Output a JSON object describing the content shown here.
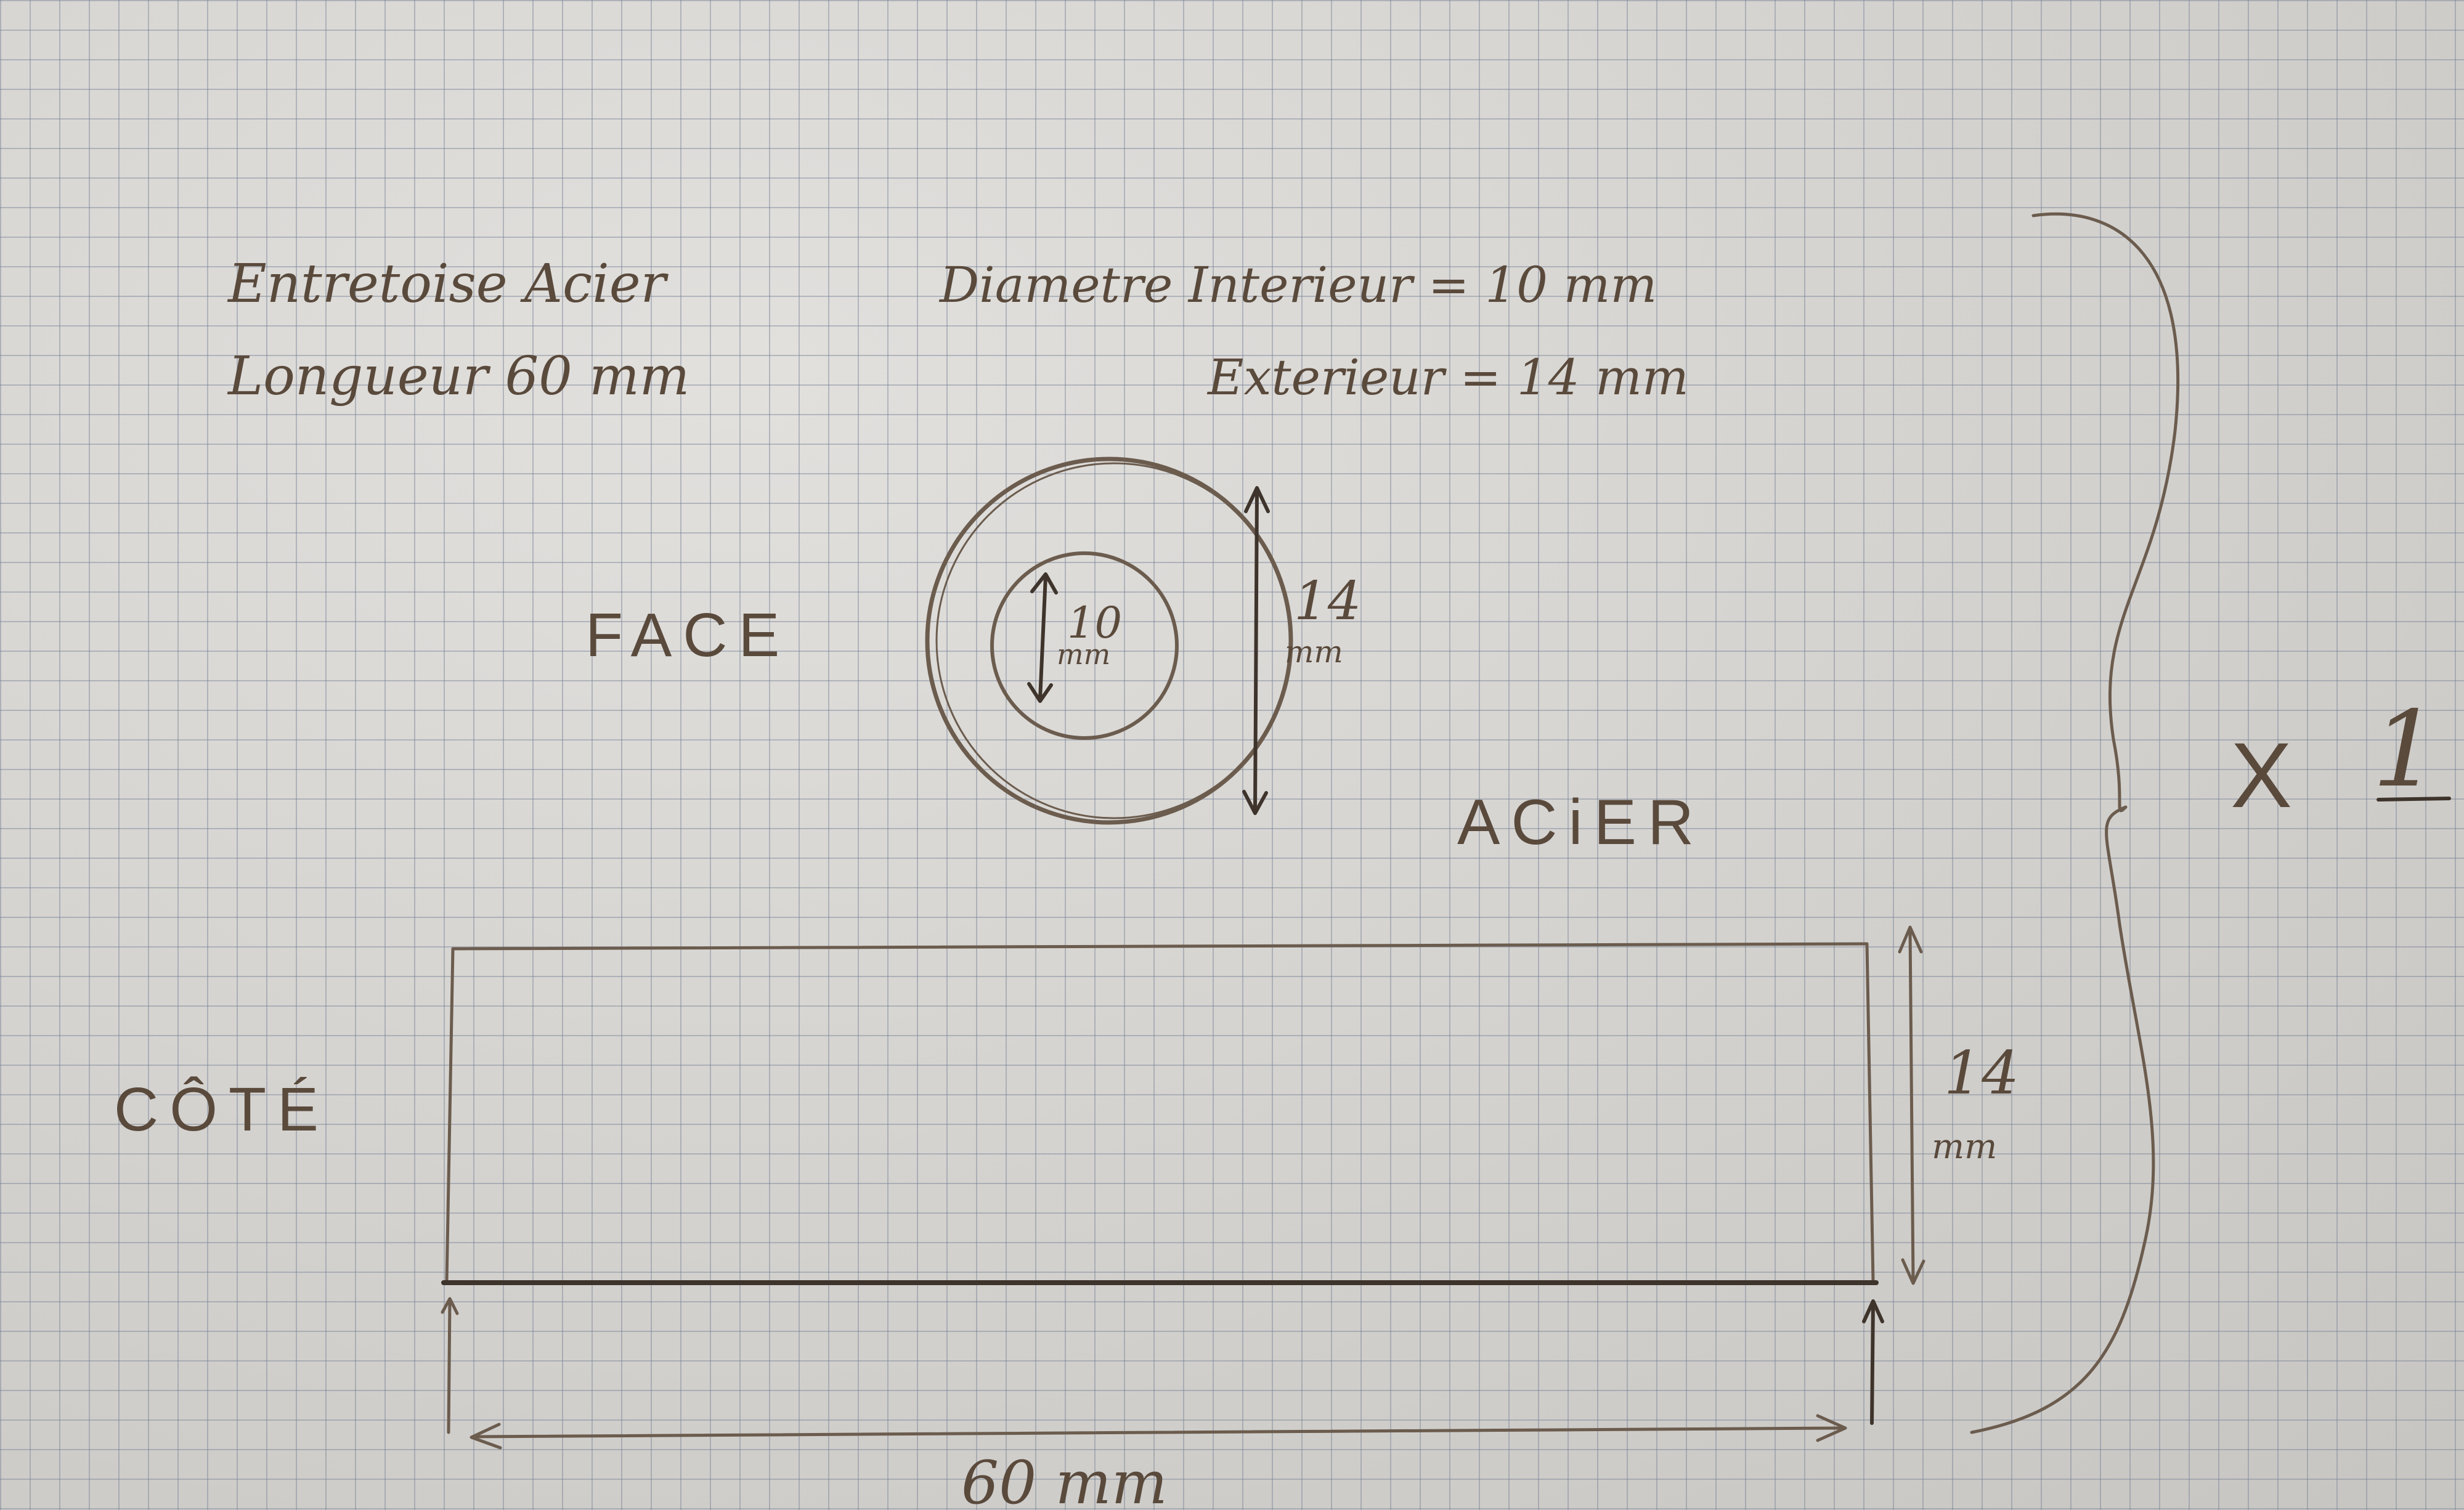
{
  "header": {
    "part_name": "Entretoise Acier",
    "length": "Longueur 60 mm",
    "inner_diameter": "Diametre Interieur = 10 mm",
    "outer_diameter": "Exterieur = 14 mm"
  },
  "face_view": {
    "label": "FACE",
    "inner_dim_value": "10",
    "inner_dim_unit": "mm",
    "outer_dim_value": "14",
    "outer_dim_unit": "mm"
  },
  "material": "ACiER",
  "side_view": {
    "label": "CÔTÉ",
    "height_value": "14",
    "height_unit": "mm",
    "length_dim": "60 mm"
  },
  "quantity": {
    "multiplier": "X",
    "count": "1"
  },
  "colors": {
    "ink": "#3e342c",
    "pencil": "#6b5c4e",
    "paper": "#d8d6d2",
    "grid": "#7882a0"
  }
}
